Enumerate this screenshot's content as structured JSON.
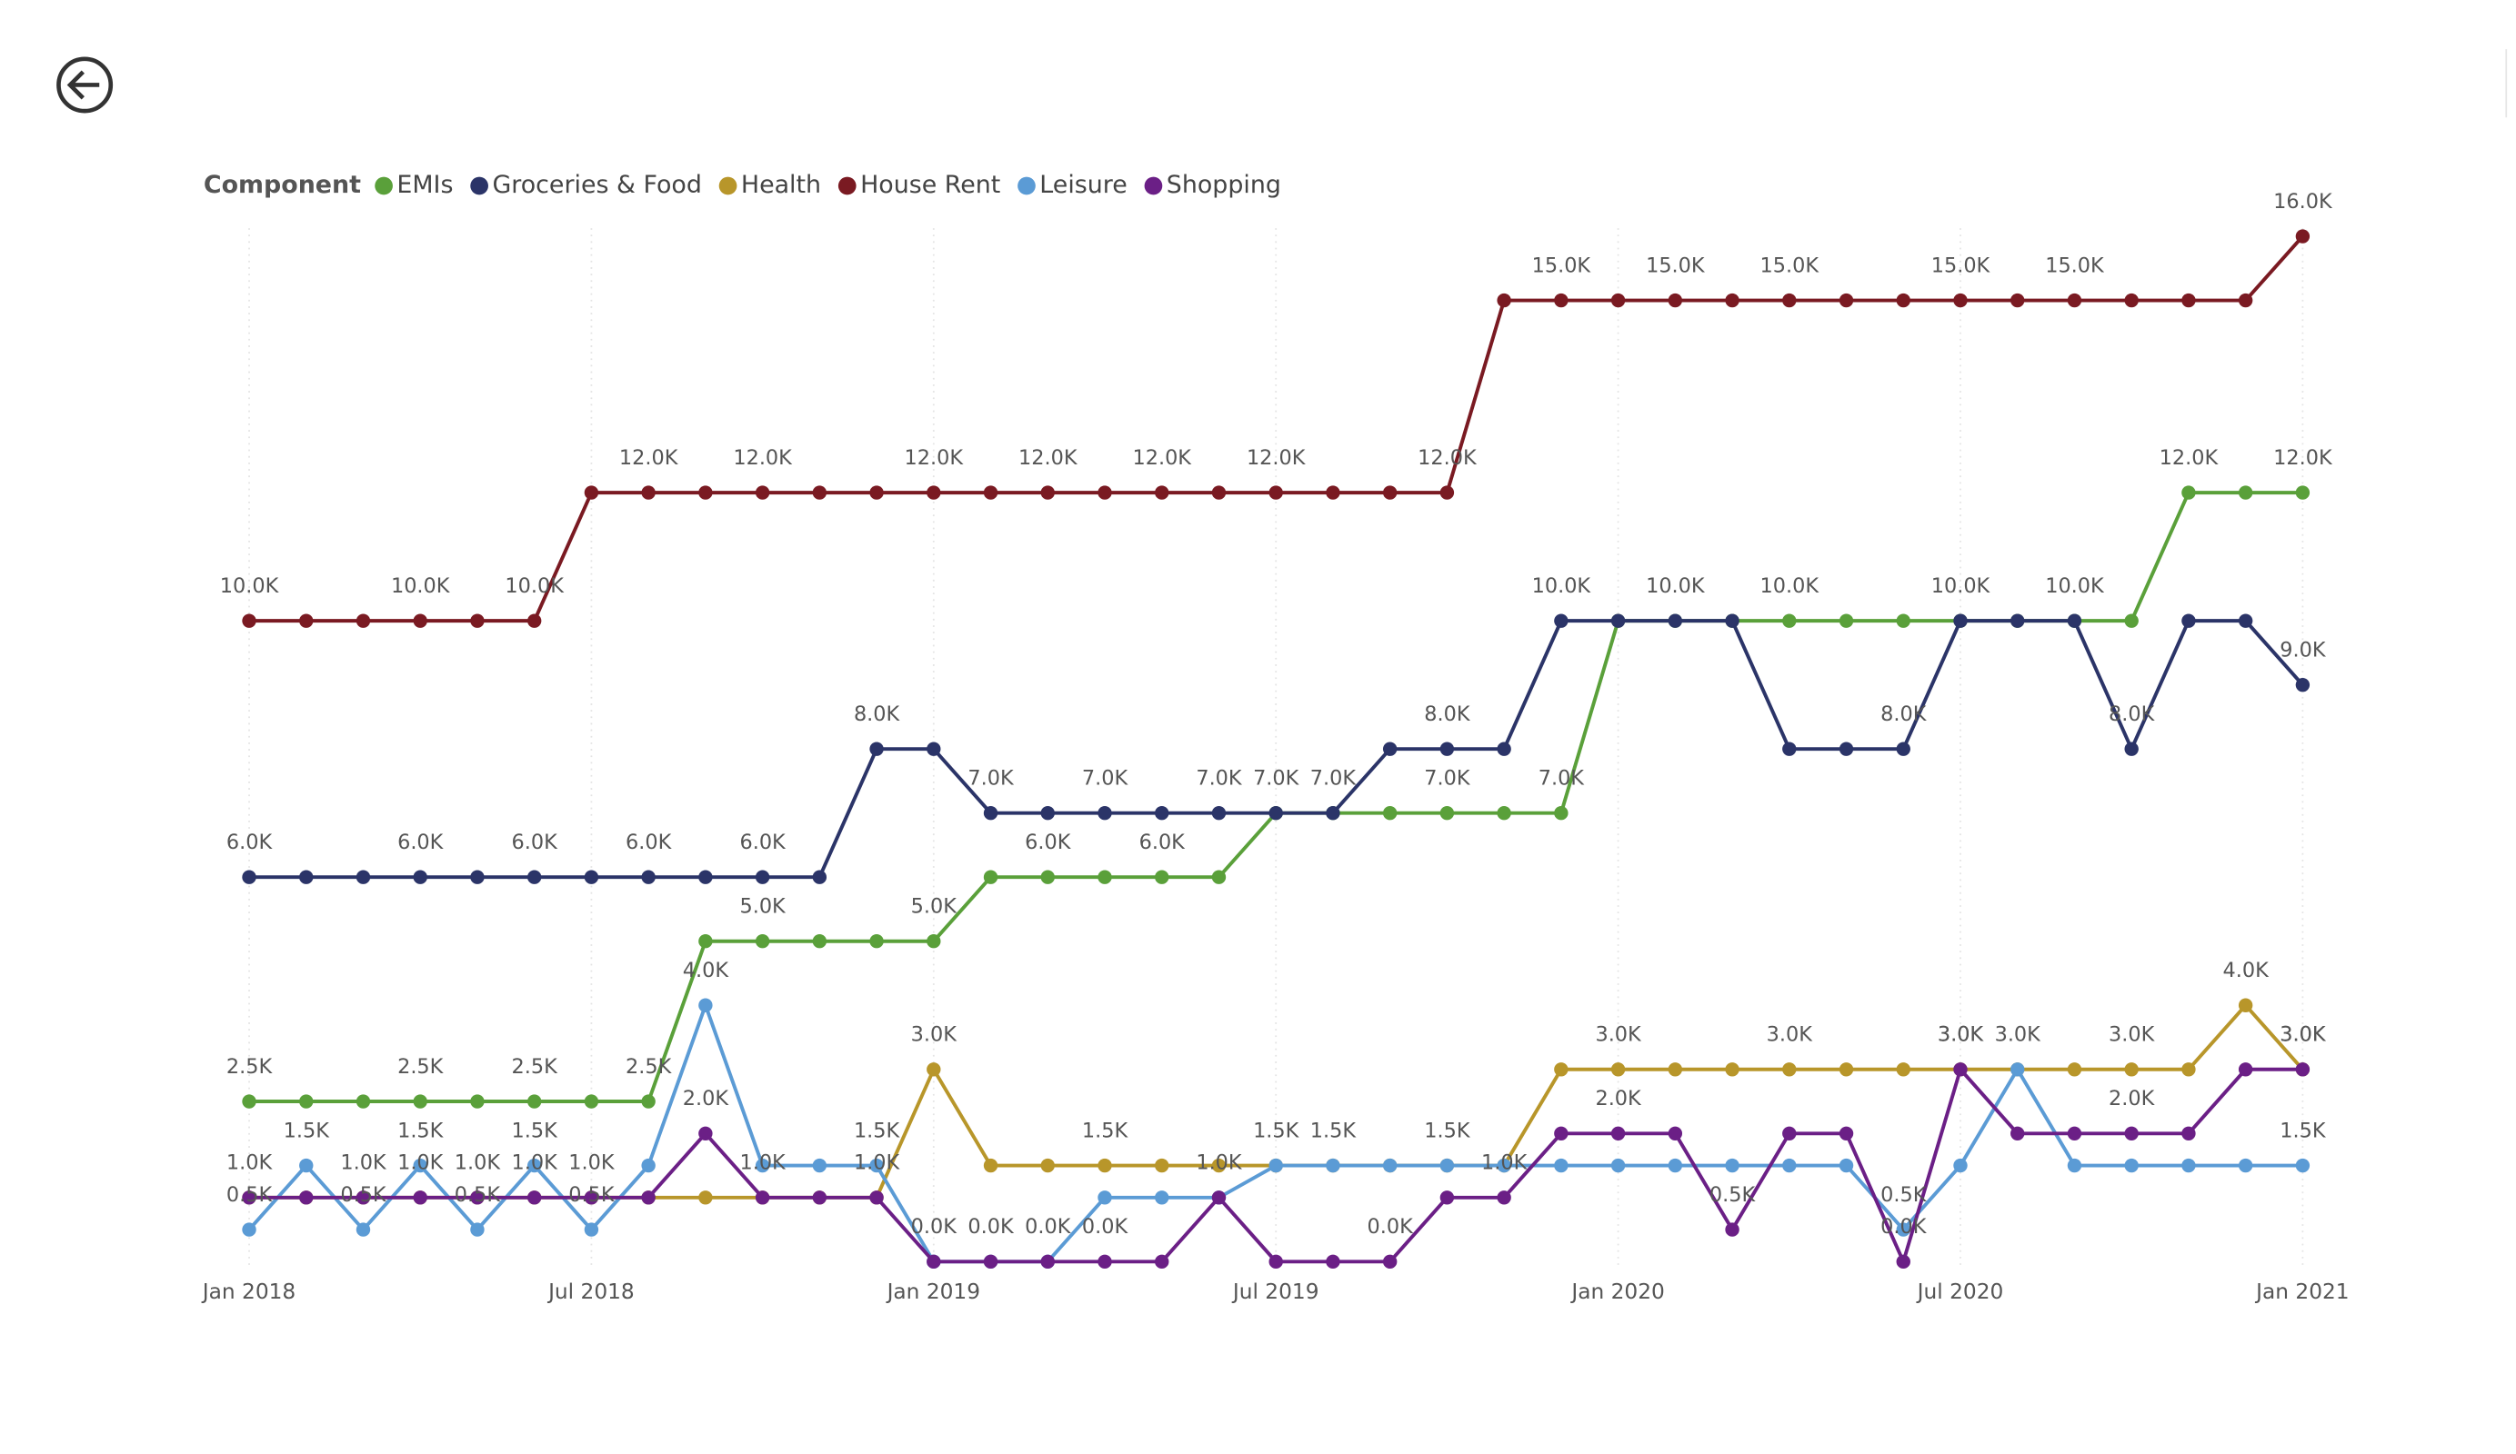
{
  "chart_data": {
    "type": "line",
    "legend_title": "Component",
    "legend": "top-left",
    "grid": true,
    "categories": [
      "Jan 2018",
      null,
      null,
      null,
      null,
      null,
      "Jul 2018",
      null,
      null,
      null,
      null,
      null,
      "Jan 2019",
      null,
      null,
      null,
      null,
      null,
      "Jul 2019",
      null,
      null,
      null,
      null,
      null,
      "Jan 2020",
      null,
      null,
      null,
      null,
      null,
      "Jul 2020",
      null,
      null,
      null,
      null,
      null,
      "Jan 2021"
    ],
    "series": [
      {
        "name": "EMIs",
        "color": "#5aa03a",
        "values": [
          2500,
          2500,
          2500,
          2500,
          2500,
          2500,
          2500,
          2500,
          5000,
          5000,
          5000,
          5000,
          5000,
          6000,
          6000,
          6000,
          6000,
          6000,
          7000,
          7000,
          7000,
          7000,
          7000,
          7000,
          10000,
          10000,
          10000,
          10000,
          10000,
          10000,
          10000,
          10000,
          10000,
          10000,
          12000,
          12000,
          12000
        ],
        "value_labels": [
          "2.5K",
          null,
          null,
          "2.5K",
          null,
          "2.5K",
          null,
          "2.5K",
          null,
          "5.0K",
          null,
          null,
          "5.0K",
          null,
          "6.0K",
          null,
          "6.0K",
          null,
          "7.0K",
          null,
          null,
          "7.0K",
          null,
          "7.0K",
          null,
          null,
          null,
          "10.0K",
          null,
          null,
          null,
          null,
          null,
          null,
          "12.0K",
          null,
          "12.0K"
        ]
      },
      {
        "name": "Groceries & Food",
        "color": "#2b3468",
        "values": [
          6000,
          6000,
          6000,
          6000,
          6000,
          6000,
          6000,
          6000,
          6000,
          6000,
          6000,
          8000,
          8000,
          7000,
          7000,
          7000,
          7000,
          7000,
          7000,
          7000,
          8000,
          8000,
          8000,
          10000,
          10000,
          10000,
          10000,
          8000,
          8000,
          8000,
          10000,
          10000,
          10000,
          8000,
          10000,
          10000,
          9000
        ],
        "value_labels": [
          "6.0K",
          null,
          null,
          "6.0K",
          null,
          "6.0K",
          null,
          "6.0K",
          null,
          "6.0K",
          null,
          "8.0K",
          null,
          "7.0K",
          null,
          "7.0K",
          null,
          "7.0K",
          null,
          "7.0K",
          null,
          "8.0K",
          null,
          "10.0K",
          null,
          "10.0K",
          null,
          null,
          null,
          "8.0K",
          "10.0K",
          null,
          "10.0K",
          "8.0K",
          null,
          null,
          "9.0K"
        ]
      },
      {
        "name": "Health",
        "color": "#b8962a",
        "values": [
          1000,
          1000,
          1000,
          1000,
          1000,
          1000,
          1000,
          1000,
          1000,
          1000,
          1000,
          1000,
          3000,
          1500,
          1500,
          1500,
          1500,
          1500,
          1500,
          1500,
          1500,
          1500,
          1500,
          3000,
          3000,
          3000,
          3000,
          3000,
          3000,
          3000,
          3000,
          3000,
          3000,
          3000,
          3000,
          4000,
          3000
        ],
        "value_labels": [
          null,
          null,
          null,
          null,
          null,
          null,
          null,
          null,
          null,
          null,
          null,
          null,
          "3.0K",
          null,
          null,
          "1.5K",
          null,
          null,
          null,
          null,
          null,
          null,
          null,
          null,
          "3.0K",
          null,
          null,
          "3.0K",
          null,
          null,
          "3.0K",
          null,
          null,
          "3.0K",
          null,
          "4.0K",
          "3.0K"
        ]
      },
      {
        "name": "House Rent",
        "color": "#7a1a22",
        "values": [
          10000,
          10000,
          10000,
          10000,
          10000,
          10000,
          12000,
          12000,
          12000,
          12000,
          12000,
          12000,
          12000,
          12000,
          12000,
          12000,
          12000,
          12000,
          12000,
          12000,
          12000,
          12000,
          15000,
          15000,
          15000,
          15000,
          15000,
          15000,
          15000,
          15000,
          15000,
          15000,
          15000,
          15000,
          15000,
          15000,
          16000
        ],
        "value_labels": [
          "10.0K",
          null,
          null,
          "10.0K",
          null,
          "10.0K",
          null,
          "12.0K",
          null,
          "12.0K",
          null,
          null,
          "12.0K",
          null,
          "12.0K",
          null,
          "12.0K",
          null,
          "12.0K",
          null,
          null,
          "12.0K",
          null,
          "15.0K",
          null,
          "15.0K",
          null,
          "15.0K",
          null,
          null,
          "15.0K",
          null,
          "15.0K",
          null,
          null,
          null,
          "16.0K"
        ]
      },
      {
        "name": "Leisure",
        "color": "#5b9bd5",
        "values": [
          500,
          1500,
          500,
          1500,
          500,
          1500,
          500,
          1500,
          4000,
          1500,
          1500,
          1500,
          0,
          0,
          0,
          1000,
          1000,
          1000,
          1500,
          1500,
          1500,
          1500,
          1500,
          1500,
          1500,
          1500,
          1500,
          1500,
          1500,
          500,
          1500,
          3000,
          1500,
          1500,
          1500,
          1500,
          1500
        ],
        "value_labels": [
          "0.5K",
          "1.5K",
          "0.5K",
          "1.5K",
          "0.5K",
          "1.5K",
          "0.5K",
          null,
          "4.0K",
          null,
          null,
          "1.5K",
          "0.0K",
          "0.0K",
          "0.0K",
          null,
          null,
          null,
          "1.5K",
          "1.5K",
          null,
          "1.5K",
          null,
          null,
          null,
          null,
          null,
          null,
          null,
          "0.5K",
          null,
          "3.0K",
          null,
          null,
          null,
          null,
          "1.5K"
        ]
      },
      {
        "name": "Shopping",
        "color": "#6b1f86",
        "values": [
          1000,
          1000,
          1000,
          1000,
          1000,
          1000,
          1000,
          1000,
          2000,
          1000,
          1000,
          1000,
          0,
          0,
          0,
          0,
          0,
          1000,
          0,
          0,
          0,
          1000,
          1000,
          2000,
          2000,
          2000,
          500,
          2000,
          2000,
          0,
          3000,
          2000,
          2000,
          2000,
          2000,
          3000,
          3000
        ],
        "value_labels": [
          "1.0K",
          null,
          "1.0K",
          "1.0K",
          "1.0K",
          "1.0K",
          "1.0K",
          null,
          "2.0K",
          "1.0K",
          null,
          "1.0K",
          null,
          null,
          null,
          "0.0K",
          null,
          "1.0K",
          null,
          null,
          "0.0K",
          null,
          "1.0K",
          null,
          "2.0K",
          null,
          "0.5K",
          null,
          null,
          "0.0K",
          "3.0K",
          null,
          null,
          "2.0K",
          null,
          null,
          "3.0K"
        ]
      }
    ]
  }
}
